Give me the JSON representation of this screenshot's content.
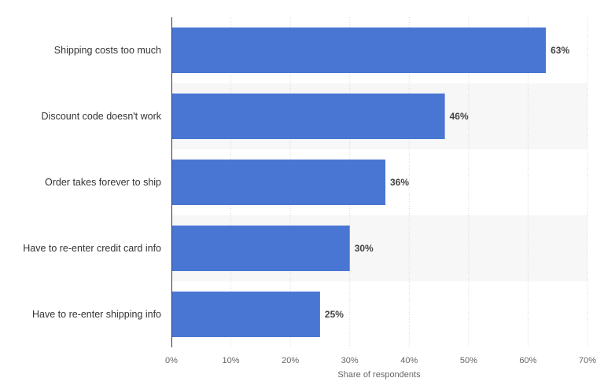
{
  "chart_data": {
    "type": "bar",
    "orientation": "horizontal",
    "categories": [
      "Shipping costs too much",
      "Discount code doesn't work",
      "Order takes forever to ship",
      "Have to re-enter credit card info",
      "Have to re-enter shipping info"
    ],
    "values": [
      63,
      46,
      36,
      30,
      25
    ],
    "data_labels": [
      "63%",
      "46%",
      "36%",
      "30%",
      "25%"
    ],
    "xlabel": "Share of respondents",
    "ylabel": "",
    "xlim": [
      0,
      70
    ],
    "ticks": [
      "0%",
      "10%",
      "20%",
      "30%",
      "40%",
      "50%",
      "60%",
      "70%"
    ],
    "grid": true,
    "bar_color": "#4a76d3",
    "band_color": "#f7f7f7"
  }
}
